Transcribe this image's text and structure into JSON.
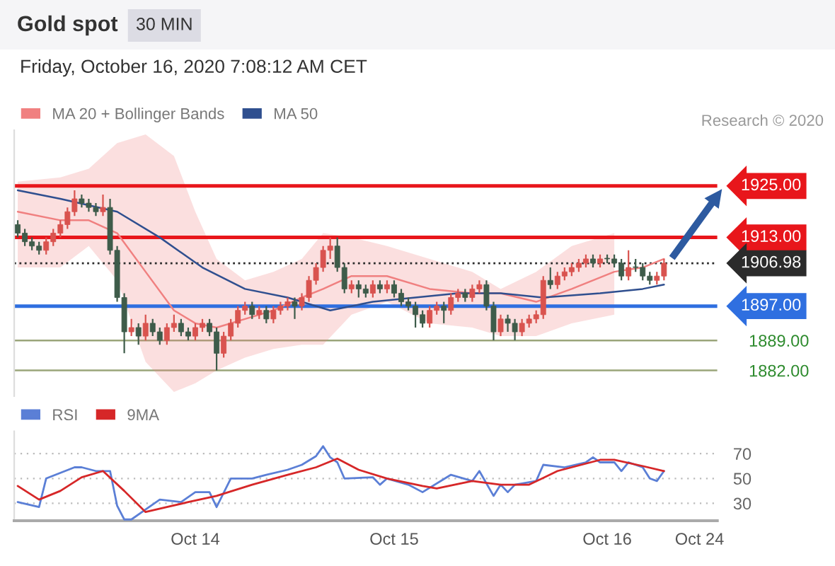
{
  "chart_data": [
    {
      "type": "candlestick",
      "title": "Gold spot",
      "subtitle": "Friday, October 16, 2020 7:08:12 AM CET",
      "annotations": [
        "30 MIN",
        "Research © 2020"
      ],
      "categories": [
        null,
        null,
        null,
        null,
        null,
        null,
        null,
        null,
        null,
        null,
        null,
        null,
        null,
        null,
        null,
        null,
        null,
        null,
        null,
        null,
        null,
        null,
        null,
        null,
        null,
        null,
        null,
        null,
        null,
        null,
        null,
        null,
        null,
        null,
        null,
        null,
        null,
        null,
        null,
        null,
        null,
        null,
        null,
        null,
        null,
        null,
        null,
        null,
        null,
        null,
        null,
        null,
        null,
        null,
        null,
        null,
        null,
        null,
        null,
        null,
        null,
        null,
        null,
        null,
        null,
        null,
        null,
        null,
        null,
        null,
        null,
        null,
        null,
        null,
        null,
        null,
        null,
        null,
        null,
        null,
        null,
        null,
        null,
        null,
        null,
        null,
        null,
        null,
        null,
        null,
        null,
        null,
        null,
        null,
        null,
        null,
        null,
        null,
        null
      ],
      "ylim": [
        1876,
        1938
      ],
      "yticks": [
        {
          "value": 1882,
          "label": "1882.00"
        },
        {
          "value": 1889,
          "label": "1889.00"
        }
      ],
      "grid": "y",
      "legend": "top left",
      "tick_labels": "y",
      "ref_lines": [
        {
          "axis": "y",
          "value": 1925,
          "label": "1925.00",
          "color": "#e8161b"
        },
        {
          "axis": "y",
          "value": 1913,
          "label": "1913.00",
          "color": "#e8161b"
        },
        {
          "axis": "y",
          "value": 1906.98,
          "label": "1906.98",
          "color": "#2b2b2b",
          "line_style": "dotted"
        },
        {
          "axis": "y",
          "value": 1897,
          "label": "1897.00",
          "color": "#2f6fe0"
        }
      ],
      "series": [
        {
          "type": "candlestick",
          "ohlc": [
            [
              1916,
              1917,
              1913,
              1914
            ],
            [
              1914,
              1915,
              1911,
              1912
            ],
            [
              1912,
              1913,
              1910,
              1911
            ],
            [
              1911,
              1912,
              1909,
              1910
            ],
            [
              1910,
              1913,
              1909,
              1912
            ],
            [
              1912,
              1915,
              1911,
              1914
            ],
            [
              1914,
              1917,
              1913,
              1916
            ],
            [
              1916,
              1920,
              1915,
              1919
            ],
            [
              1919,
              1924,
              1918,
              1922
            ],
            [
              1922,
              1923,
              1920,
              1921
            ],
            [
              1921,
              1922,
              1919,
              1920
            ],
            [
              1920,
              1921,
              1918,
              1919
            ],
            [
              1919,
              1923,
              1918,
              1920
            ],
            [
              1920,
              1922,
              1909,
              1910
            ],
            [
              1910,
              1911,
              1898,
              1899
            ],
            [
              1899,
              1900,
              1886,
              1891
            ],
            [
              1891,
              1894,
              1890,
              1892
            ],
            [
              1892,
              1893,
              1888,
              1890
            ],
            [
              1890,
              1895,
              1889,
              1893
            ],
            [
              1893,
              1894,
              1890,
              1891
            ],
            [
              1891,
              1892,
              1888,
              1889
            ],
            [
              1889,
              1893,
              1888,
              1892
            ],
            [
              1892,
              1895,
              1891,
              1893
            ],
            [
              1893,
              1894,
              1890,
              1891
            ],
            [
              1891,
              1892,
              1889,
              1890
            ],
            [
              1890,
              1893,
              1889,
              1892
            ],
            [
              1892,
              1894,
              1891,
              1893
            ],
            [
              1893,
              1894,
              1890,
              1891
            ],
            [
              1891,
              1892,
              1882,
              1886
            ],
            [
              1886,
              1891,
              1885,
              1890
            ],
            [
              1890,
              1894,
              1889,
              1893
            ],
            [
              1893,
              1897,
              1892,
              1896
            ],
            [
              1896,
              1898,
              1895,
              1897
            ],
            [
              1897,
              1898,
              1894,
              1895
            ],
            [
              1895,
              1897,
              1894,
              1896
            ],
            [
              1896,
              1897,
              1893,
              1894
            ],
            [
              1894,
              1897,
              1893,
              1896
            ],
            [
              1896,
              1898,
              1895,
              1897
            ],
            [
              1897,
              1899,
              1896,
              1898
            ],
            [
              1898,
              1899,
              1894,
              1897
            ],
            [
              1897,
              1900,
              1896,
              1899
            ],
            [
              1899,
              1904,
              1898,
              1903
            ],
            [
              1903,
              1907,
              1902,
              1906
            ],
            [
              1906,
              1911,
              1905,
              1910
            ],
            [
              1910,
              1913,
              1908,
              1911
            ],
            [
              1911,
              1913,
              1905,
              1906
            ],
            [
              1906,
              1907,
              1900,
              1901
            ],
            [
              1901,
              1903,
              1900,
              1902
            ],
            [
              1902,
              1903,
              1899,
              1901
            ],
            [
              1901,
              1902,
              1899,
              1900
            ],
            [
              1900,
              1903,
              1899,
              1902
            ],
            [
              1902,
              1903,
              1900,
              1901
            ],
            [
              1901,
              1903,
              1900,
              1902
            ],
            [
              1902,
              1903,
              1899,
              1900
            ],
            [
              1900,
              1901,
              1897,
              1898
            ],
            [
              1898,
              1899,
              1896,
              1897
            ],
            [
              1897,
              1898,
              1892,
              1895
            ],
            [
              1895,
              1896,
              1892,
              1893
            ],
            [
              1893,
              1897,
              1892,
              1896
            ],
            [
              1896,
              1898,
              1895,
              1897
            ],
            [
              1897,
              1898,
              1893,
              1896
            ],
            [
              1896,
              1900,
              1895,
              1899
            ],
            [
              1899,
              1901,
              1898,
              1900
            ],
            [
              1900,
              1901,
              1898,
              1899
            ],
            [
              1899,
              1902,
              1898,
              1901
            ],
            [
              1901,
              1903,
              1900,
              1902
            ],
            [
              1902,
              1903,
              1896,
              1897
            ],
            [
              1897,
              1898,
              1889,
              1891
            ],
            [
              1891,
              1895,
              1890,
              1894
            ],
            [
              1894,
              1895,
              1891,
              1893
            ],
            [
              1893,
              1894,
              1889,
              1891
            ],
            [
              1891,
              1894,
              1890,
              1893
            ],
            [
              1893,
              1895,
              1892,
              1894
            ],
            [
              1894,
              1896,
              1893,
              1895
            ],
            [
              1895,
              1904,
              1894,
              1903
            ],
            [
              1903,
              1906,
              1901,
              1902
            ],
            [
              1902,
              1905,
              1901,
              1904
            ],
            [
              1904,
              1906,
              1903,
              1905
            ],
            [
              1905,
              1907,
              1904,
              1906
            ],
            [
              1906,
              1908,
              1905,
              1907
            ],
            [
              1907,
              1909,
              1906,
              1908
            ],
            [
              1908,
              1909,
              1906,
              1907
            ],
            [
              1907,
              1909,
              1906,
              1908
            ],
            [
              1908,
              1909,
              1907,
              1908
            ],
            [
              1908,
              1909,
              1906,
              1907
            ],
            [
              1907,
              1908,
              1903,
              1904
            ],
            [
              1904,
              1910,
              1903,
              1906
            ],
            [
              1906,
              1908,
              1905,
              1906
            ],
            [
              1906,
              1907,
              1903,
              1904
            ],
            [
              1904,
              1905,
              1902,
              1903
            ],
            [
              1903,
              1905,
              1902,
              1904
            ],
            [
              1904,
              1908,
              1903,
              1906.98
            ],
            null,
            null,
            null,
            null,
            null,
            null,
            null
          ],
          "colors": [
            "#3e5c4a",
            "#3e5c4a",
            "#3e5c4a",
            "#3e5c4a",
            "#d9534f",
            "#d9534f",
            "#d9534f",
            "#d9534f",
            "#d9534f",
            "#3e5c4a",
            "#3e5c4a",
            "#3e5c4a",
            "#d9534f",
            "#3e5c4a",
            "#3e5c4a",
            "#3e5c4a",
            "#d9534f",
            "#3e5c4a",
            "#d9534f",
            "#3e5c4a",
            "#3e5c4a",
            "#d9534f",
            "#d9534f",
            "#3e5c4a",
            "#3e5c4a",
            "#d9534f",
            "#d9534f",
            "#3e5c4a",
            "#3e5c4a",
            "#d9534f",
            "#d9534f",
            "#d9534f",
            "#d9534f",
            "#3e5c4a",
            "#d9534f",
            "#3e5c4a",
            "#d9534f",
            "#d9534f",
            "#d9534f",
            "#3e5c4a",
            "#d9534f",
            "#d9534f",
            "#d9534f",
            "#d9534f",
            "#d9534f",
            "#3e5c4a",
            "#3e5c4a",
            "#d9534f",
            "#3e5c4a",
            "#3e5c4a",
            "#d9534f",
            "#3e5c4a",
            "#d9534f",
            "#3e5c4a",
            "#3e5c4a",
            "#3e5c4a",
            "#3e5c4a",
            "#3e5c4a",
            "#d9534f",
            "#d9534f",
            "#3e5c4a",
            "#d9534f",
            "#d9534f",
            "#3e5c4a",
            "#d9534f",
            "#d9534f",
            "#3e5c4a",
            "#3e5c4a",
            "#d9534f",
            "#3e5c4a",
            "#3e5c4a",
            "#d9534f",
            "#d9534f",
            "#d9534f",
            "#d9534f",
            "#3e5c4a",
            "#d9534f",
            "#d9534f",
            "#d9534f",
            "#d9534f",
            "#d9534f",
            "#3e5c4a",
            "#d9534f",
            "#3e5c4a",
            "#3e5c4a",
            "#3e5c4a",
            "#d9534f",
            "#3e5c4a",
            "#3e5c4a",
            "#3e5c4a",
            "#d9534f",
            "#d9534f",
            null,
            null,
            null,
            null,
            null,
            null,
            null
          ]
        },
        {
          "type": "line",
          "name": "MA 20 + Bollinger Bands",
          "color": "#f08080",
          "values": [
            1919,
            null,
            null,
            null,
            null,
            null,
            1917,
            null,
            null,
            null,
            1917,
            null,
            null,
            null,
            1914,
            null,
            null,
            null,
            1905,
            null,
            null,
            null,
            1896,
            null,
            null,
            1893,
            null,
            null,
            1892,
            null,
            null,
            null,
            1894,
            null,
            null,
            null,
            1896,
            null,
            null,
            null,
            1899,
            null,
            null,
            1901,
            null,
            null,
            null,
            1904,
            null,
            null,
            null,
            null,
            1904,
            null,
            null,
            null,
            null,
            null,
            1901,
            null,
            null,
            null,
            null,
            null,
            1900,
            null,
            null,
            null,
            1900,
            null,
            null,
            null,
            null,
            1898,
            null,
            null,
            null,
            null,
            1901,
            null,
            null,
            null,
            null,
            null,
            1905,
            null,
            null,
            null,
            1906,
            null,
            null,
            1908,
            null,
            null,
            null,
            null,
            null,
            null,
            null
          ],
          "upper": [
            1926,
            null,
            null,
            null,
            null,
            null,
            1927,
            null,
            null,
            null,
            1929,
            null,
            null,
            null,
            1935,
            null,
            null,
            null,
            1937,
            null,
            null,
            null,
            1932,
            null,
            null,
            1919,
            null,
            null,
            1908,
            null,
            null,
            null,
            1903,
            null,
            null,
            null,
            1905,
            null,
            null,
            null,
            1908,
            null,
            null,
            1914,
            null,
            null,
            null,
            1913,
            null,
            null,
            null,
            null,
            1911,
            null,
            null,
            null,
            null,
            null,
            1908,
            null,
            null,
            null,
            null,
            null,
            1905,
            null,
            null,
            null,
            1901,
            null,
            null,
            null,
            null,
            1905,
            null,
            null,
            null,
            null,
            1911,
            null,
            null,
            null,
            null,
            null,
            1914,
            null,
            null,
            null,
            null,
            null,
            null,
            null,
            null,
            null,
            null,
            null,
            null,
            null,
            null
          ],
          "lower": [
            1906,
            null,
            null,
            null,
            null,
            null,
            1906,
            null,
            null,
            null,
            1911,
            null,
            null,
            null,
            1903,
            null,
            null,
            null,
            1884,
            null,
            null,
            null,
            1877,
            null,
            null,
            1879,
            null,
            null,
            1882,
            null,
            null,
            null,
            1885,
            null,
            null,
            null,
            1887,
            null,
            null,
            null,
            1888,
            null,
            null,
            1888,
            null,
            null,
            null,
            1895,
            null,
            null,
            null,
            null,
            1898,
            null,
            null,
            null,
            null,
            null,
            1893,
            null,
            null,
            null,
            null,
            null,
            1892,
            null,
            null,
            null,
            1890,
            null,
            null,
            null,
            null,
            1890,
            null,
            null,
            null,
            null,
            1893,
            null,
            null,
            null,
            null,
            null,
            1895,
            null,
            null,
            null,
            null,
            null,
            null,
            null,
            null,
            null,
            null,
            null,
            null,
            null,
            null
          ]
        },
        {
          "type": "line",
          "name": "MA 50",
          "color": "#2f4f8f",
          "values": [
            1924,
            null,
            null,
            null,
            null,
            null,
            1922,
            null,
            null,
            null,
            null,
            null,
            null,
            null,
            1919,
            null,
            null,
            null,
            null,
            null,
            1913,
            null,
            null,
            null,
            null,
            null,
            1906,
            null,
            null,
            null,
            null,
            null,
            1901,
            null,
            null,
            null,
            null,
            null,
            1899,
            null,
            null,
            null,
            null,
            null,
            1896,
            null,
            null,
            null,
            null,
            null,
            1898,
            null,
            null,
            null,
            null,
            null,
            1899,
            null,
            null,
            null,
            null,
            null,
            1900,
            null,
            null,
            null,
            null,
            null,
            1900,
            null,
            null,
            null,
            null,
            null,
            1899,
            null,
            null,
            null,
            null,
            null,
            null,
            null,
            1900,
            null,
            null,
            null,
            null,
            null,
            1901,
            null,
            null,
            1902,
            null,
            null,
            null,
            null,
            null,
            null,
            null
          ]
        }
      ]
    },
    {
      "type": "line",
      "ylim": [
        16,
        88
      ],
      "yticks": [
        30,
        50,
        70
      ],
      "categories": [
        null,
        null,
        null,
        null,
        null,
        null,
        null,
        null,
        null,
        null,
        null,
        null,
        null,
        null,
        null,
        null,
        null,
        null,
        null,
        null,
        null,
        null,
        null,
        null,
        null,
        "Oct 14",
        null,
        null,
        null,
        null,
        null,
        null,
        null,
        null,
        null,
        null,
        null,
        null,
        null,
        null,
        null,
        null,
        null,
        null,
        null,
        null,
        null,
        null,
        null,
        null,
        null,
        null,
        null,
        "Oct 15",
        null,
        null,
        null,
        null,
        null,
        null,
        null,
        null,
        null,
        null,
        null,
        null,
        null,
        null,
        null,
        null,
        null,
        null,
        null,
        null,
        null,
        null,
        null,
        null,
        null,
        null,
        null,
        null,
        null,
        "Oct 16",
        null,
        null,
        null,
        null,
        null,
        null,
        null,
        null,
        null,
        null,
        null,
        null,
        "Oct 24",
        null,
        null
      ],
      "grid": "y",
      "legend": "top left",
      "series": [
        {
          "name": "RSI",
          "color": "#5b7fd6",
          "values": [
            31,
            null,
            null,
            27,
            50,
            null,
            null,
            null,
            59,
            59,
            null,
            56,
            null,
            56,
            28,
            17,
            17,
            null,
            25,
            null,
            33,
            null,
            null,
            31,
            null,
            39,
            null,
            39,
            27,
            null,
            50,
            null,
            null,
            50,
            null,
            53,
            null,
            null,
            57,
            null,
            61,
            null,
            68,
            76,
            67,
            63,
            50,
            null,
            null,
            null,
            51,
            45,
            50,
            null,
            null,
            45,
            null,
            39,
            null,
            null,
            null,
            53,
            null,
            null,
            48,
            56,
            null,
            36,
            45,
            39,
            45,
            null,
            null,
            48,
            61,
            null,
            null,
            59,
            null,
            null,
            63,
            67,
            63,
            null,
            63,
            56,
            63,
            null,
            59,
            50,
            48,
            56,
            null,
            null,
            null,
            null,
            null,
            null,
            null
          ]
        },
        {
          "name": "9MA",
          "color": "#d62728",
          "values": [
            44,
            null,
            null,
            33,
            null,
            null,
            40,
            null,
            null,
            51,
            null,
            null,
            56,
            null,
            null,
            40,
            null,
            null,
            23,
            null,
            null,
            27,
            null,
            null,
            31,
            null,
            null,
            null,
            36,
            null,
            null,
            null,
            null,
            45,
            null,
            null,
            null,
            null,
            53,
            null,
            null,
            null,
            59,
            null,
            null,
            66,
            null,
            null,
            57,
            null,
            null,
            null,
            50,
            null,
            null,
            null,
            null,
            44,
            null,
            42,
            null,
            null,
            null,
            null,
            48,
            null,
            null,
            null,
            45,
            null,
            null,
            null,
            45,
            null,
            null,
            null,
            56,
            null,
            null,
            null,
            null,
            null,
            65,
            null,
            65,
            null,
            null,
            null,
            60,
            null,
            null,
            56,
            null,
            null,
            null,
            null,
            null,
            null,
            null
          ]
        }
      ]
    }
  ]
}
